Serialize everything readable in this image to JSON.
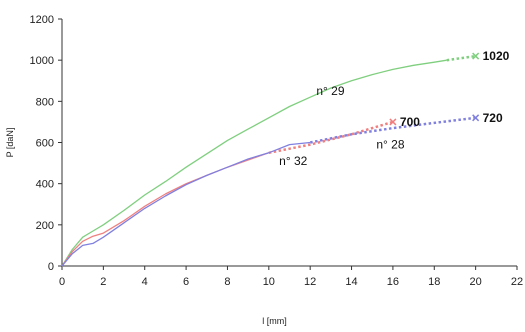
{
  "chart_data": {
    "type": "line",
    "title": "",
    "xlabel": "l [mm]",
    "ylabel": "P [daN]",
    "xlim": [
      0,
      22
    ],
    "ylim": [
      0,
      1200
    ],
    "x_ticks": [
      "0",
      "2",
      "4",
      "6",
      "8",
      "10",
      "12",
      "14",
      "16",
      "18",
      "20",
      "22"
    ],
    "y_ticks": [
      "0",
      "200",
      "400",
      "600",
      "800",
      "1000",
      "1200"
    ],
    "grid": false,
    "legend": "none",
    "series": [
      {
        "name": "n° 29",
        "color": "#7fcf7f",
        "measured": [
          [
            0,
            0
          ],
          [
            0.5,
            80
          ],
          [
            1,
            140
          ],
          [
            1.5,
            170
          ],
          [
            2,
            200
          ],
          [
            3,
            270
          ],
          [
            4,
            345
          ],
          [
            5,
            410
          ],
          [
            6,
            480
          ],
          [
            7,
            545
          ],
          [
            8,
            610
          ],
          [
            9,
            665
          ],
          [
            10,
            720
          ],
          [
            11,
            775
          ],
          [
            12,
            820
          ],
          [
            13,
            865
          ],
          [
            14,
            900
          ],
          [
            15,
            930
          ],
          [
            16,
            955
          ],
          [
            17,
            975
          ],
          [
            18,
            990
          ],
          [
            18.6,
            1000
          ]
        ],
        "extrapolated": [
          [
            18.6,
            1000
          ],
          [
            20,
            1020
          ]
        ],
        "end_value": "1020"
      },
      {
        "name": "n° 32",
        "color": "#f08080",
        "measured": [
          [
            0,
            0
          ],
          [
            0.5,
            70
          ],
          [
            1,
            120
          ],
          [
            1.5,
            145
          ],
          [
            2,
            160
          ],
          [
            3,
            220
          ],
          [
            4,
            290
          ],
          [
            5,
            350
          ],
          [
            6,
            400
          ],
          [
            7,
            440
          ],
          [
            8,
            480
          ],
          [
            9,
            515
          ],
          [
            10,
            550
          ]
        ],
        "extrapolated": [
          [
            10,
            550
          ],
          [
            12,
            590
          ],
          [
            14,
            640
          ],
          [
            16,
            700
          ]
        ],
        "end_value": "700"
      },
      {
        "name": "n° 28",
        "color": "#8080e0",
        "measured": [
          [
            0,
            0
          ],
          [
            0.5,
            60
          ],
          [
            1,
            100
          ],
          [
            1.5,
            110
          ],
          [
            2,
            140
          ],
          [
            3,
            210
          ],
          [
            4,
            280
          ],
          [
            5,
            340
          ],
          [
            6,
            395
          ],
          [
            7,
            440
          ],
          [
            8,
            480
          ],
          [
            9,
            520
          ],
          [
            10,
            550
          ],
          [
            11,
            590
          ],
          [
            12,
            600
          ]
        ],
        "extrapolated": [
          [
            12,
            600
          ],
          [
            14,
            640
          ],
          [
            16,
            670
          ],
          [
            18,
            695
          ],
          [
            20,
            720
          ]
        ],
        "end_value": "720"
      }
    ],
    "annotations": [
      {
        "text": "n° 29",
        "x": 12.3,
        "y": 830
      },
      {
        "text": "n° 32",
        "x": 10.5,
        "y": 490
      },
      {
        "text": "n° 28",
        "x": 15.2,
        "y": 570
      }
    ]
  }
}
